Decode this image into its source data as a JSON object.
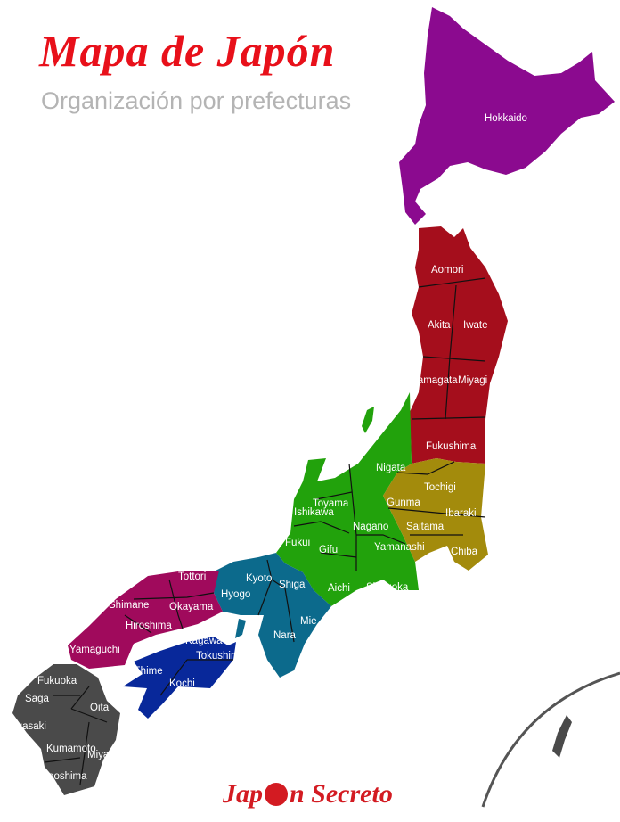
{
  "title": "Mapa de Japón",
  "subtitle": "Organización por prefecturas",
  "logo_text": {
    "left": "Jap",
    "right": "n Secreto"
  },
  "colors": {
    "hokkaido": "#8b0a8f",
    "tohoku": "#a50e1c",
    "chubu": "#22a20c",
    "kanto": "#a38b0c",
    "kansai": "#0c6a8c",
    "chugoku": "#a00a5c",
    "shikoku": "#08289a",
    "kyushu": "#4a4a4a",
    "title": "#e8101a",
    "subtitle": "#b4b4b4"
  },
  "prefectures": [
    "Hokkaido",
    "Aomori",
    "Akita",
    "Iwate",
    "Yamagata",
    "Miyagi",
    "Fukushima",
    "Nigata",
    "Tochigi",
    "Gunma",
    "Ibaraki",
    "Saitama",
    "Chiba",
    "Toyama",
    "Ishikawa",
    "Nagano",
    "Yamanashi",
    "Fukui",
    "Gifu",
    "Aichi",
    "Shizuoka",
    "Kyoto",
    "Shiga",
    "Hyogo",
    "Mie",
    "Nara",
    "Tottori",
    "Shimane",
    "Okayama",
    "Hiroshima",
    "Yamaguchi",
    "Kagawa",
    "Tokushima",
    "Ehime",
    "Kochi",
    "Fukuoka",
    "Saga",
    "Oita",
    "Nagasaki",
    "Kumamoto",
    "Miyazaki",
    "Kagoshima"
  ]
}
